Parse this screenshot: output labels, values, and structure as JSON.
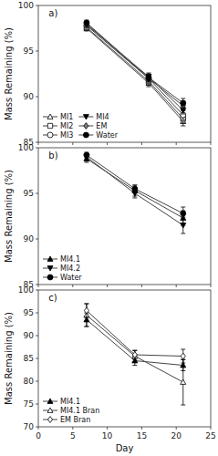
{
  "chart_data": [
    {
      "type": "line",
      "annotations": [
        "a)"
      ],
      "ylabel": "Mass Remaining (%)",
      "x": [
        7,
        16,
        21
      ],
      "series": [
        {
          "name": "MI1",
          "marker": "triangle-up",
          "color": "white",
          "values": [
            97.5,
            91.5,
            87.3
          ],
          "errors": [
            0.3,
            0.4,
            0.5
          ]
        },
        {
          "name": "MI2",
          "marker": "square",
          "color": "white",
          "values": [
            97.6,
            91.7,
            87.6
          ],
          "errors": [
            0.3,
            0.4,
            0.5
          ]
        },
        {
          "name": "MI3",
          "marker": "circle",
          "color": "white",
          "values": [
            97.8,
            92.0,
            88.0
          ],
          "errors": [
            0.3,
            0.4,
            0.5
          ]
        },
        {
          "name": "MI4",
          "marker": "triangle-down",
          "color": "black",
          "values": [
            97.9,
            92.2,
            88.5
          ],
          "errors": [
            0.3,
            0.4,
            0.4
          ]
        },
        {
          "name": "EM",
          "marker": "diamond",
          "color": "gray",
          "values": [
            98.0,
            92.0,
            89.0
          ],
          "errors": [
            0.3,
            0.4,
            0.5
          ]
        },
        {
          "name": "Water",
          "marker": "circle",
          "color": "black",
          "values": [
            98.1,
            92.1,
            89.3
          ],
          "errors": [
            0.3,
            0.4,
            0.5
          ]
        }
      ],
      "xlim": [
        0,
        25
      ],
      "xticks": [
        0,
        5,
        10,
        15,
        20,
        25
      ],
      "ylim": [
        85,
        100
      ],
      "yticks": [
        85,
        90,
        95,
        100
      ],
      "legend": "lower left",
      "grid": false,
      "tick_labels": "y"
    },
    {
      "type": "line",
      "annotations": [
        "b)"
      ],
      "ylabel": "Mass Remaining (%)",
      "x": [
        7,
        14,
        21
      ],
      "series": [
        {
          "name": "MI4.1",
          "marker": "triangle-up",
          "color": "black",
          "values": [
            98.8,
            95.3,
            92.3
          ],
          "errors": [
            0.4,
            0.6,
            0.8
          ]
        },
        {
          "name": "MI4.2",
          "marker": "triangle-down",
          "color": "black",
          "values": [
            99.0,
            95.0,
            91.5
          ],
          "errors": [
            0.3,
            0.5,
            0.9
          ]
        },
        {
          "name": "Water",
          "marker": "circle",
          "color": "black",
          "values": [
            99.2,
            95.5,
            92.8
          ],
          "errors": [
            0.3,
            0.4,
            0.7
          ]
        }
      ],
      "xlim": [
        0,
        25
      ],
      "xticks": [
        0,
        5,
        10,
        15,
        20,
        25
      ],
      "ylim": [
        85,
        100
      ],
      "yticks": [
        85,
        90,
        95,
        100
      ],
      "legend": "lower left",
      "grid": false,
      "tick_labels": "y"
    },
    {
      "type": "line",
      "annotations": [
        "c)"
      ],
      "ylabel": "Mass Remaining (%)",
      "xlabel": "Day",
      "x": [
        7,
        14,
        21
      ],
      "series": [
        {
          "name": "MI4.1",
          "marker": "triangle-up",
          "color": "black",
          "values": [
            93.5,
            84.5,
            83.5
          ],
          "errors": [
            1.5,
            1.0,
            1.2
          ]
        },
        {
          "name": "MI4.1 Bran",
          "marker": "triangle-up",
          "color": "white",
          "values": [
            94.5,
            85.5,
            79.8
          ],
          "errors": [
            2.5,
            1.2,
            5.0
          ]
        },
        {
          "name": "EM Bran",
          "marker": "diamond",
          "color": "white",
          "values": [
            95.5,
            85.8,
            85.5
          ],
          "errors": [
            1.5,
            1.0,
            1.5
          ]
        }
      ],
      "xlim": [
        0,
        25
      ],
      "xticks": [
        0,
        5,
        10,
        15,
        20,
        25
      ],
      "ylim": [
        70,
        100
      ],
      "yticks": [
        70,
        75,
        80,
        85,
        90,
        95,
        100
      ],
      "legend": "lower left",
      "grid": false,
      "tick_labels": true
    }
  ]
}
